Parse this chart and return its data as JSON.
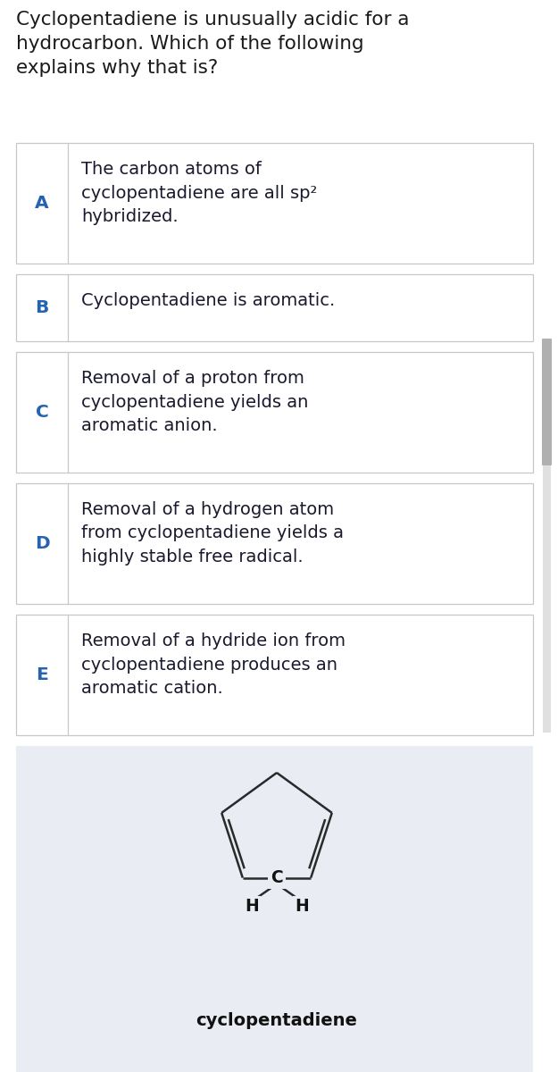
{
  "title": "Cyclopentadiene is unusually acidic for a\nhydrocarbon. Which of the following\nexplains why that is?",
  "title_color": "#1a1a1a",
  "title_fontsize": 15.5,
  "bg_color": "#ffffff",
  "option_bg": "#ffffff",
  "bottom_bg": "#eaecf4",
  "border_color": "#c8c8c8",
  "label_color": "#2563b0",
  "text_color": "#1a1a2e",
  "options": [
    {
      "label": "A",
      "text": "The carbon atoms of\ncyclopentadiene are all sp²\nhybridized."
    },
    {
      "label": "B",
      "text": "Cyclopentadiene is aromatic."
    },
    {
      "label": "C",
      "text": "Removal of a proton from\ncyclopentadiene yields an\naromatic anion."
    },
    {
      "label": "D",
      "text": "Removal of a hydrogen atom\nfrom cyclopentadiene yields a\nhighly stable free radical."
    },
    {
      "label": "E",
      "text": "Removal of a hydride ion from\ncyclopentadiene produces an\naromatic cation."
    }
  ],
  "label_fontsize": 14.5,
  "option_fontsize": 14,
  "molecule_label": "cyclopentadiene",
  "molecule_label_fontsize": 14,
  "scrollbar_color": "#b0b0b0"
}
